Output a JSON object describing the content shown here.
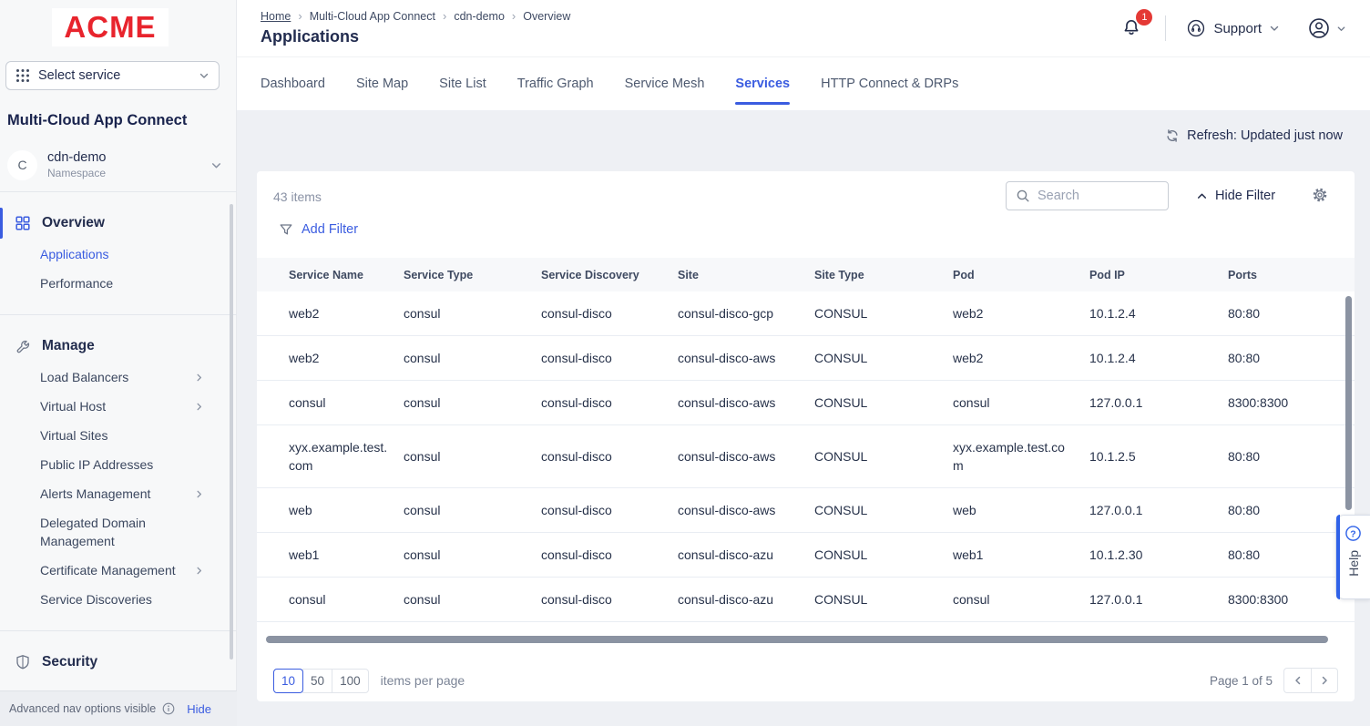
{
  "brand": {
    "logo_text": "ACME"
  },
  "sidebar": {
    "service_selector_label": "Select service",
    "product_title": "Multi-Cloud App Connect",
    "namespace": {
      "initial": "C",
      "name": "cdn-demo",
      "type_label": "Namespace"
    },
    "sections": [
      {
        "label": "Overview",
        "icon": "overview-grid-icon",
        "active": true,
        "items": [
          {
            "label": "Applications",
            "active": true,
            "has_submenu": false
          },
          {
            "label": "Performance",
            "active": false,
            "has_submenu": false
          }
        ]
      },
      {
        "label": "Manage",
        "icon": "wrench-icon",
        "active": false,
        "items": [
          {
            "label": "Load Balancers",
            "active": false,
            "has_submenu": true
          },
          {
            "label": "Virtual Host",
            "active": false,
            "has_submenu": true
          },
          {
            "label": "Virtual Sites",
            "active": false,
            "has_submenu": false
          },
          {
            "label": "Public IP Addresses",
            "active": false,
            "has_submenu": false
          },
          {
            "label": "Alerts Management",
            "active": false,
            "has_submenu": true
          },
          {
            "label": "Delegated Domain Management",
            "active": false,
            "has_submenu": false
          },
          {
            "label": "Certificate Management",
            "active": false,
            "has_submenu": true
          },
          {
            "label": "Service Discoveries",
            "active": false,
            "has_submenu": false
          }
        ]
      },
      {
        "label": "Security",
        "icon": "shield-icon",
        "active": false,
        "items": []
      }
    ],
    "footer": {
      "text": "Advanced nav options visible",
      "hide_label": "Hide"
    }
  },
  "header": {
    "breadcrumb": [
      "Home",
      "Multi-Cloud App Connect",
      "cdn-demo",
      "Overview"
    ],
    "page_title": "Applications",
    "notification_count": "1",
    "support_label": "Support"
  },
  "tabs": [
    {
      "label": "Dashboard",
      "active": false
    },
    {
      "label": "Site Map",
      "active": false
    },
    {
      "label": "Site List",
      "active": false
    },
    {
      "label": "Traffic Graph",
      "active": false
    },
    {
      "label": "Service Mesh",
      "active": false
    },
    {
      "label": "Services",
      "active": true
    },
    {
      "label": "HTTP Connect & DRPs",
      "active": false
    }
  ],
  "toolbar": {
    "refresh_label": "Refresh: Updated just now",
    "items_count": "43 items",
    "search_placeholder": "Search",
    "hide_filter_label": "Hide Filter",
    "add_filter_label": "Add Filter"
  },
  "table": {
    "columns": [
      "Service Name",
      "Service Type",
      "Service Discovery",
      "Site",
      "Site Type",
      "Pod",
      "Pod IP",
      "Ports"
    ],
    "rows": [
      [
        "web2",
        "consul",
        "consul-disco",
        "consul-disco-gcp",
        "CONSUL",
        "web2",
        "10.1.2.4",
        "80:80"
      ],
      [
        "web2",
        "consul",
        "consul-disco",
        "consul-disco-aws",
        "CONSUL",
        "web2",
        "10.1.2.4",
        "80:80"
      ],
      [
        "consul",
        "consul",
        "consul-disco",
        "consul-disco-aws",
        "CONSUL",
        "consul",
        "127.0.0.1",
        "8300:8300"
      ],
      [
        "xyx.example.test.com",
        "consul",
        "consul-disco",
        "consul-disco-aws",
        "CONSUL",
        "xyx.example.test.com",
        "10.1.2.5",
        "80:80"
      ],
      [
        "web",
        "consul",
        "consul-disco",
        "consul-disco-aws",
        "CONSUL",
        "web",
        "127.0.0.1",
        "80:80"
      ],
      [
        "web1",
        "consul",
        "consul-disco",
        "consul-disco-azu",
        "CONSUL",
        "web1",
        "10.1.2.30",
        "80:80"
      ],
      [
        "consul",
        "consul",
        "consul-disco",
        "consul-disco-azu",
        "CONSUL",
        "consul",
        "127.0.0.1",
        "8300:8300"
      ]
    ]
  },
  "pagination": {
    "page_sizes": [
      "10",
      "50",
      "100"
    ],
    "selected_size": "10",
    "items_per_page_label": "items per page",
    "page_info": "Page 1 of 5"
  },
  "help_label": "Help",
  "colors": {
    "accent": "#3a5ce0",
    "logo_red": "#e8242d",
    "badge_red": "#e43935",
    "navy": "#222c4f"
  }
}
